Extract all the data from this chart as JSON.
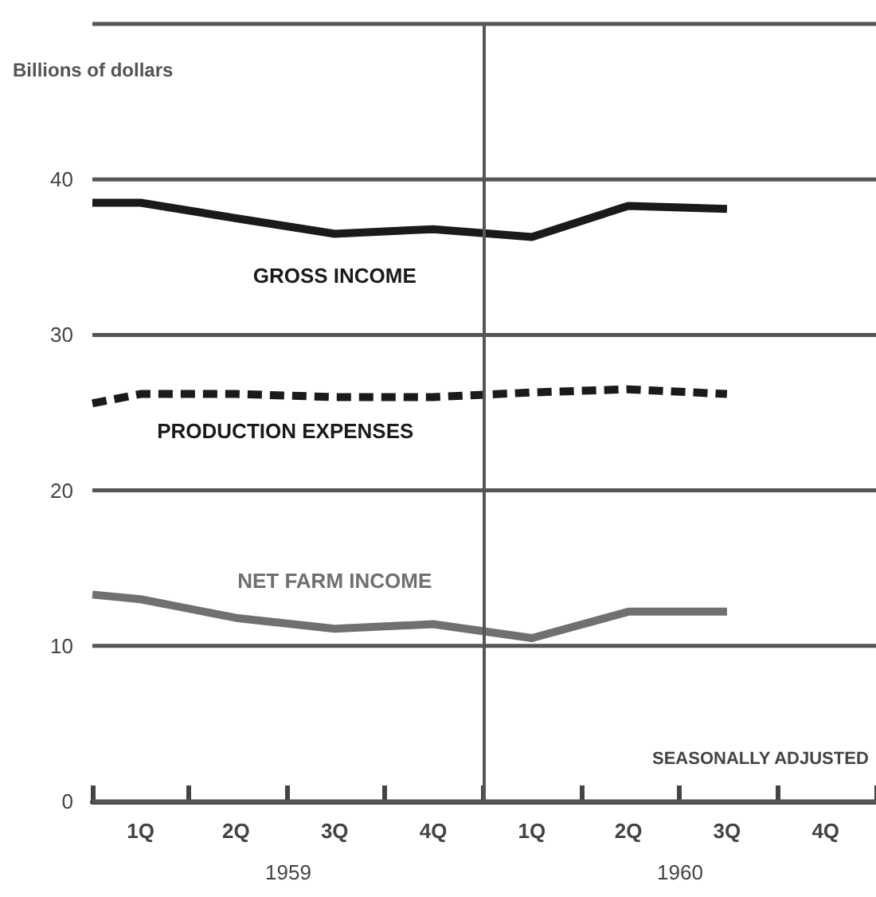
{
  "chart_data": {
    "type": "line",
    "ylabel": "Billions of dollars",
    "xlim": [
      "1959-01-01",
      "1961-01-01"
    ],
    "xticks": [
      {
        "value": "1959-01-01",
        "label": null
      },
      {
        "value": "1959-02-15",
        "label": "1Q"
      },
      {
        "value": "1959-04-01",
        "label": null
      },
      {
        "value": "1959-05-15",
        "label": "2Q"
      },
      {
        "value": "1959-07-01",
        "label": null
      },
      {
        "value": "1959-08-15",
        "label": "3Q"
      },
      {
        "value": "1959-10-01",
        "label": null
      },
      {
        "value": "1959-11-15",
        "label": "4Q"
      },
      {
        "value": "1960-01-01",
        "label": null
      },
      {
        "value": "1960-02-15",
        "label": "1Q"
      },
      {
        "value": "1960-04-01",
        "label": null
      },
      {
        "value": "1960-05-15",
        "label": "2Q"
      },
      {
        "value": "1960-07-01",
        "label": null
      },
      {
        "value": "1960-08-15",
        "label": "3Q"
      },
      {
        "value": "1960-10-01",
        "label": null
      },
      {
        "value": "1960-11-15",
        "label": "4Q"
      },
      {
        "value": "1961-01-01",
        "label": null
      }
    ],
    "ylim": [
      0,
      50
    ],
    "yticks": [
      0,
      10,
      20,
      30,
      40,
      {
        "value": 50,
        "label": null
      }
    ],
    "x": [
      "1959-01-01",
      "1959-02-15",
      "1959-05-15",
      "1959-08-15",
      "1959-11-15",
      "1960-02-15",
      "1960-05-15",
      "1960-08-15"
    ],
    "series": [
      {
        "name": "GROSS INCOME",
        "color": "#1a1a1a",
        "line_style": "solid",
        "values": [
          38.5,
          38.5,
          37.5,
          36.5,
          36.8,
          36.3,
          38.3,
          38.1
        ]
      },
      {
        "name": "PRODUCTION EXPENSES",
        "color": "#1a1a1a",
        "line_style": "dashed",
        "values": [
          25.6,
          26.2,
          26.2,
          26.0,
          26.0,
          26.3,
          26.5,
          26.2
        ]
      },
      {
        "name": "NET FARM INCOME",
        "color": "#707070",
        "line_style": "solid",
        "values": [
          13.3,
          13.0,
          11.8,
          11.1,
          11.4,
          10.5,
          12.2,
          12.2
        ]
      }
    ],
    "ref_lines": [
      {
        "axis": "x",
        "value": "1960-01-01",
        "color": "#555555"
      }
    ],
    "annotations": [
      "SEASONALLY ADJUSTED",
      "1959",
      "1960"
    ],
    "grid": "y",
    "legend": false,
    "marker": "none"
  }
}
